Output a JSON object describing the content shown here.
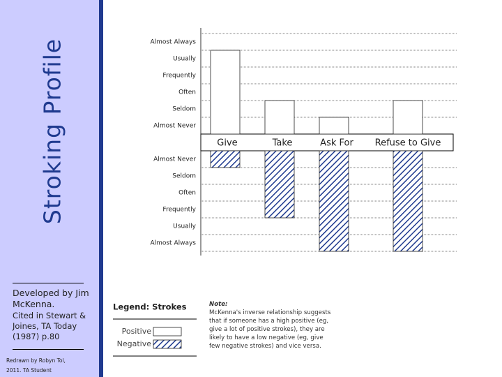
{
  "title": "Stroking Profile",
  "credits": {
    "developed": "Developed by Jim McKenna.",
    "cited": "Cited in Stewart & Joines, TA Today (1987) p.80",
    "redrawn": "Redrawn by Robyn Tol, 2011. TA Student"
  },
  "note": {
    "label": "Note:",
    "text": "McKenna's inverse relationship suggests that if someone has a high positive (eg, give a lot of positive strokes), they are likely to have a low negative (eg, give few negative strokes) and vice versa."
  },
  "chart_data": {
    "type": "bar",
    "categories": [
      "Give",
      "Take",
      "Ask For",
      "Refuse to Give"
    ],
    "series": [
      {
        "name": "Positive",
        "color": "#ffffff",
        "values": [
          5,
          2,
          1,
          2
        ]
      },
      {
        "name": "Negative",
        "color": "#1f3a8f",
        "pattern": "hatch",
        "axis": "y2",
        "values": [
          1,
          4,
          6,
          6
        ]
      }
    ],
    "ylim": [
      0,
      6
    ],
    "yticks": [
      {
        "value": 1,
        "label": "Almost Never"
      },
      {
        "value": 2,
        "label": "Seldom"
      },
      {
        "value": 3,
        "label": "Often"
      },
      {
        "value": 4,
        "label": "Frequently"
      },
      {
        "value": 5,
        "label": "Usually"
      },
      {
        "value": 6,
        "label": "Almost Always"
      }
    ],
    "y2lim": [
      0,
      6
    ],
    "y2ticks": [
      {
        "value": 1,
        "label": "Almost Never"
      },
      {
        "value": 2,
        "label": "Seldom"
      },
      {
        "value": 3,
        "label": "Often"
      },
      {
        "value": 4,
        "label": "Frequently"
      },
      {
        "value": 5,
        "label": "Usually"
      },
      {
        "value": 6,
        "label": "Almost Always"
      }
    ],
    "grid": true,
    "legend_title": "Legend: Strokes"
  }
}
